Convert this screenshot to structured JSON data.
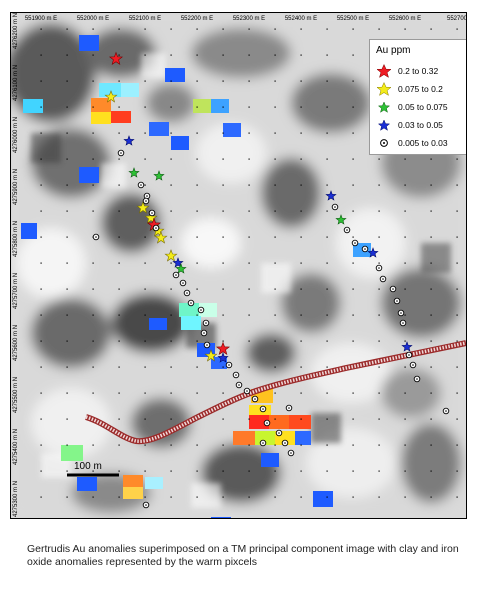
{
  "caption": "Gertrudis Au anomalies superimposed on a TM principal component image with clay and iron oxide anomalies represented by the warm pixcels",
  "scale_bar_label": "100 m",
  "legend": {
    "title": "Au  ppm",
    "items": [
      {
        "label": "0.2    to 0.32",
        "symbol": "star",
        "color": "#ee1c24"
      },
      {
        "label": "0.075 to 0.2",
        "symbol": "star",
        "color": "#f3ec1a"
      },
      {
        "label": "0.05  to 0.075",
        "symbol": "star",
        "color": "#2ec135"
      },
      {
        "label": "0.03  to 0.05",
        "symbol": "star",
        "color": "#1b2fd4"
      },
      {
        "label": "0.005 to 0.03",
        "symbol": "circle-dot",
        "color": "#ffffff"
      }
    ]
  },
  "easting_labels": [
    "551900 m E",
    "552000 m E",
    "552100 m E",
    "552200 m E",
    "552300 m E",
    "552400 m E",
    "552500 m E",
    "552600 m E",
    "552700"
  ],
  "northing_labels": [
    "4276200 m N",
    "4276100 m N",
    "4276000 m N",
    "4275900 m N",
    "4275800 m N",
    "4275700 m N",
    "4275600 m N",
    "4275500 m N",
    "4275400 m N",
    "4275300 m N"
  ],
  "colors": {
    "fault_line": "#9b2a2a",
    "au_high": "#ee1c24",
    "au_mid": "#f3ec1a",
    "au_low": "#2ec135",
    "au_lower": "#1b2fd4"
  }
}
